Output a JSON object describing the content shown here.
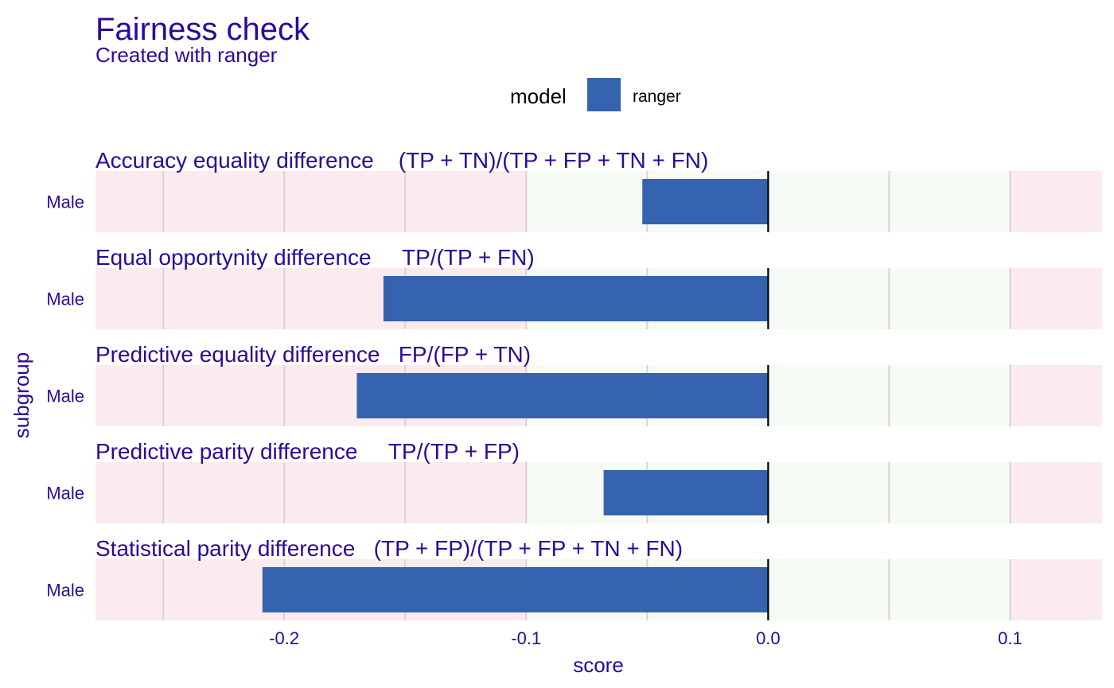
{
  "chart_data": {
    "type": "bar",
    "orientation": "horizontal",
    "title": "Fairness check",
    "subtitle": "Created with ranger",
    "xlabel": "score",
    "ylabel": "subgroup",
    "xlim": [
      -0.278,
      0.138
    ],
    "x_ticks": [
      -0.2,
      -0.1,
      0.0,
      0.1
    ],
    "x_tick_labels": [
      "-0.2",
      "-0.1",
      "0.0",
      "0.1"
    ],
    "acceptable_range": [
      -0.1,
      0.1
    ],
    "legend": {
      "title": "model",
      "position": "top",
      "entries": [
        {
          "label": "ranger",
          "color": "#3563b0"
        }
      ]
    },
    "colors": {
      "bar": "#3563b0",
      "unacceptable_band": "#fbeaee",
      "acceptable_band": "#f6fbf5",
      "text": "#2a0a9a"
    },
    "grid": true,
    "series": [
      {
        "name": "ranger"
      }
    ],
    "facets": [
      {
        "title": "Accuracy equality difference    (TP + TN)/(TP + FP + TN + FN)",
        "category": "Male",
        "value": -0.052
      },
      {
        "title": "Equal opportynity difference     TP/(TP + FN)",
        "category": "Male",
        "value": -0.159
      },
      {
        "title": "Predictive equality difference   FP/(FP + TN)",
        "category": "Male",
        "value": -0.17
      },
      {
        "title": "Predictive parity difference     TP/(TP + FP)",
        "category": "Male",
        "value": -0.068
      },
      {
        "title": "Statistical parity difference   (TP + FP)/(TP + FP + TN + FN)",
        "category": "Male",
        "value": -0.209
      }
    ]
  }
}
